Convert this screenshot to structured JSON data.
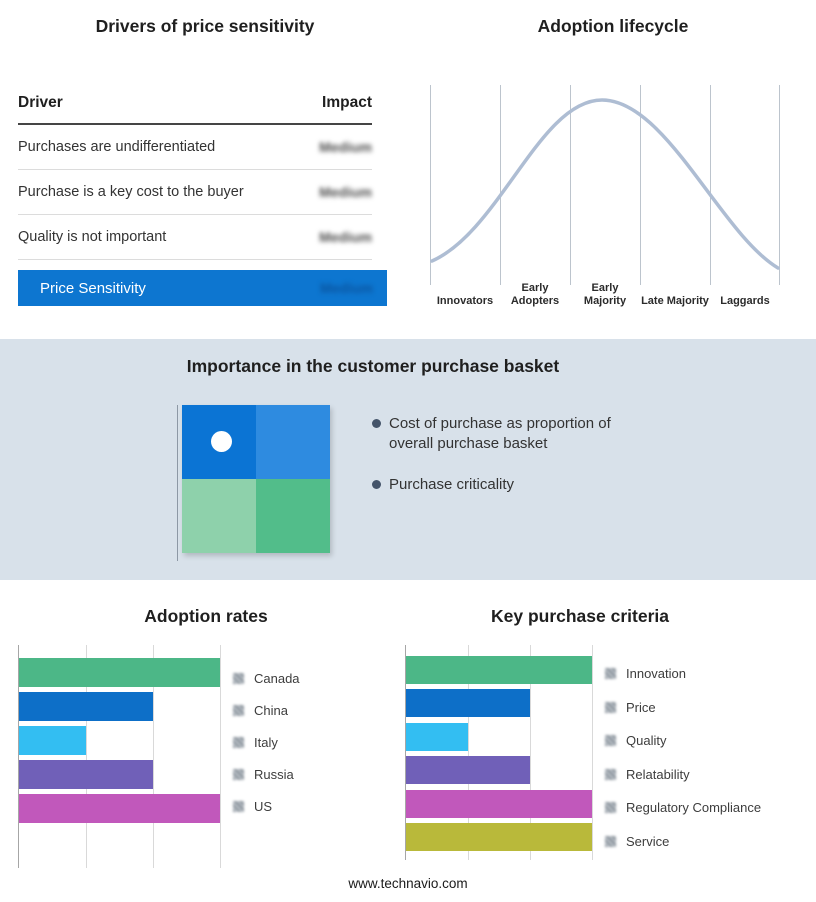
{
  "drivers": {
    "title": "Drivers of price sensitivity",
    "header": {
      "driver": "Driver",
      "impact": "Impact"
    },
    "rows": [
      {
        "driver": "Purchases are undifferentiated",
        "impact": "Medium"
      },
      {
        "driver": "Purchase is a key cost to the buyer",
        "impact": "Medium"
      },
      {
        "driver": "Quality is not important",
        "impact": "Medium"
      }
    ],
    "summary": {
      "label": "Price Sensitivity",
      "impact": "Medium"
    },
    "highlight_color": "#0d76d0"
  },
  "lifecycle": {
    "title": "Adoption lifecycle",
    "stages": [
      "Innovators",
      "Early Adopters",
      "Early Majority",
      "Late Majority",
      "Laggards"
    ],
    "curve_color": "#aebdd3"
  },
  "basket": {
    "title": "Importance in the customer purchase basket",
    "bullets": [
      "Cost of purchase as proportion of overall purchase basket",
      "Purchase criticality"
    ],
    "quadrant_colors": {
      "top_left": "#0b74d4",
      "top_right": "#2e8be0",
      "bottom_left": "#8ed1ab",
      "bottom_right": "#52bd8a"
    },
    "band_color": "#d8e1ea"
  },
  "charts": {
    "adoption_rates": {
      "title": "Adoption rates",
      "max": 3,
      "bars": [
        {
          "label": "Canada",
          "value": 3,
          "color": "#4cb787"
        },
        {
          "label": "China",
          "value": 2,
          "color": "#0d6fc8"
        },
        {
          "label": "Italy",
          "value": 1,
          "color": "#33bef2"
        },
        {
          "label": "Russia",
          "value": 2,
          "color": "#7060b8"
        },
        {
          "label": "US",
          "value": 3,
          "color": "#c158bb"
        }
      ]
    },
    "key_purchase_criteria": {
      "title": "Key purchase criteria",
      "max": 3,
      "bars": [
        {
          "label": "Innovation",
          "value": 3,
          "color": "#4cb787"
        },
        {
          "label": "Price",
          "value": 2,
          "color": "#0d6fc8"
        },
        {
          "label": "Quality",
          "value": 1,
          "color": "#33bef2"
        },
        {
          "label": "Relatability",
          "value": 2,
          "color": "#7060b8"
        },
        {
          "label": "Regulatory Compliance",
          "value": 3,
          "color": "#c158bb"
        },
        {
          "label": "Service",
          "value": 3,
          "color": "#b9b93a"
        }
      ]
    }
  },
  "footer": {
    "url": "www.technavio.com"
  },
  "chart_data": [
    {
      "type": "line",
      "title": "Adoption lifecycle",
      "x": [
        "Innovators",
        "Early Adopters",
        "Early Majority",
        "Late Majority",
        "Laggards"
      ],
      "values": [
        0.1,
        0.6,
        1.0,
        0.6,
        0.1
      ],
      "grid": "vertical category separators",
      "note": "Bell-shaped adoption lifecycle curve; no numeric axis shown, values are relative curve heights"
    },
    {
      "type": "bar",
      "orientation": "horizontal",
      "title": "Adoption rates",
      "categories": [
        "Canada",
        "China",
        "Italy",
        "Russia",
        "US"
      ],
      "values": [
        3,
        2,
        1,
        2,
        3
      ],
      "xlim": [
        0,
        3
      ],
      "colors": [
        "#4cb787",
        "#0d6fc8",
        "#33bef2",
        "#7060b8",
        "#c158bb"
      ],
      "legend_position": "right",
      "note": "Axis unlabeled; values estimated in gridline units (3 gridline intervals = full width)"
    },
    {
      "type": "bar",
      "orientation": "horizontal",
      "title": "Key purchase criteria",
      "categories": [
        "Innovation",
        "Price",
        "Quality",
        "Relatability",
        "Regulatory Compliance",
        "Service"
      ],
      "values": [
        3,
        2,
        1,
        2,
        3,
        3
      ],
      "xlim": [
        0,
        3
      ],
      "colors": [
        "#4cb787",
        "#0d6fc8",
        "#33bef2",
        "#7060b8",
        "#c158bb",
        "#b9b93a"
      ],
      "legend_position": "right",
      "note": "Axis unlabeled; values estimated in gridline units"
    }
  ]
}
